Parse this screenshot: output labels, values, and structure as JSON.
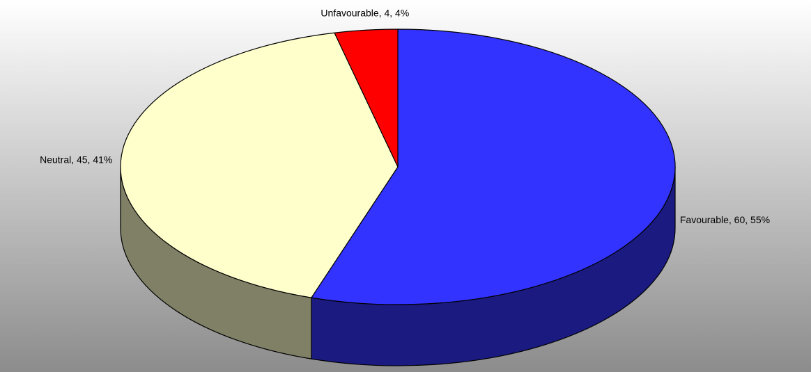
{
  "chart_data": {
    "type": "pie",
    "values": [
      60,
      45,
      4
    ],
    "value_labels": [
      "Favourable, 60, 55%",
      "Neutral, 45, 41%",
      "Unfavourable, 4, 4%"
    ],
    "colors": [
      "#3333ff",
      "#ffffcc",
      "#ff0000"
    ],
    "three_d": true
  }
}
